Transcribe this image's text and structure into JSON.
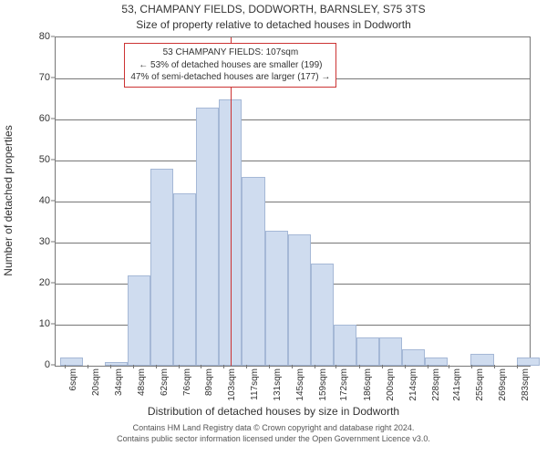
{
  "title_main": "53, CHAMPANY FIELDS, DODWORTH, BARNSLEY, S75 3TS",
  "title_sub": "Size of property relative to detached houses in Dodworth",
  "ylabel": "Number of detached properties",
  "xlabel": "Distribution of detached houses by size in Dodworth",
  "footer_line1": "Contains HM Land Registry data © Crown copyright and database right 2024.",
  "footer_line2": "Contains public sector information licensed under the Open Government Licence v3.0.",
  "chart": {
    "type": "histogram",
    "background_color": "#ffffff",
    "grid_color": "#777777",
    "axis_color": "#777777",
    "bar_fill": "#cfdcef",
    "bar_border": "#a5b8d6",
    "marker_color": "#cc3333",
    "marker_x": 107,
    "xlim": [
      0,
      290
    ],
    "ylim": [
      0,
      80
    ],
    "ytick_step": 10,
    "xticks": [
      6,
      20,
      34,
      48,
      62,
      76,
      89,
      103,
      117,
      131,
      145,
      159,
      172,
      186,
      200,
      214,
      228,
      241,
      255,
      269,
      283
    ],
    "xtick_suffix": "sqm",
    "bars": [
      {
        "x": 3,
        "w": 14,
        "v": 2
      },
      {
        "x": 30,
        "w": 14,
        "v": 1
      },
      {
        "x": 44,
        "w": 14,
        "v": 22
      },
      {
        "x": 58,
        "w": 14,
        "v": 48
      },
      {
        "x": 72,
        "w": 14,
        "v": 42
      },
      {
        "x": 86,
        "w": 14,
        "v": 63
      },
      {
        "x": 100,
        "w": 14,
        "v": 65
      },
      {
        "x": 114,
        "w": 14,
        "v": 46
      },
      {
        "x": 128,
        "w": 14,
        "v": 33
      },
      {
        "x": 142,
        "w": 14,
        "v": 32
      },
      {
        "x": 156,
        "w": 14,
        "v": 25
      },
      {
        "x": 170,
        "w": 14,
        "v": 10
      },
      {
        "x": 184,
        "w": 14,
        "v": 7
      },
      {
        "x": 198,
        "w": 14,
        "v": 7
      },
      {
        "x": 212,
        "w": 14,
        "v": 4
      },
      {
        "x": 226,
        "w": 14,
        "v": 2
      },
      {
        "x": 254,
        "w": 14,
        "v": 3
      },
      {
        "x": 282,
        "w": 14,
        "v": 2
      }
    ]
  },
  "annotation": {
    "line1": "53 CHAMPANY FIELDS: 107sqm",
    "line2": "← 53% of detached houses are smaller (199)",
    "line3": "47% of semi-detached houses are larger (177) →",
    "border_color": "#cc3333",
    "bg_color": "#ffffff",
    "fontsize": 10
  }
}
